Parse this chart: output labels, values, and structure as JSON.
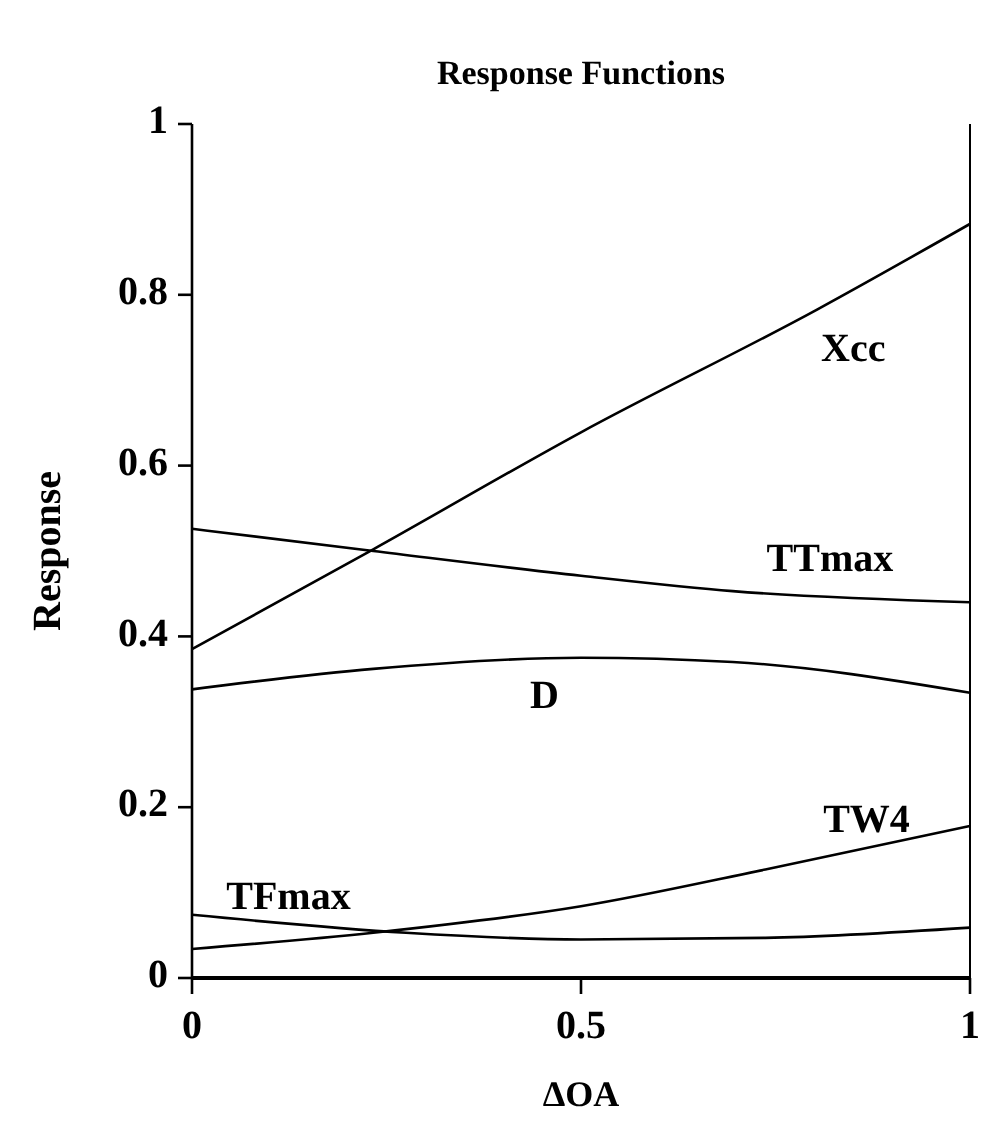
{
  "chart_data": {
    "type": "line",
    "title": "Response Functions",
    "xlabel": "ΔOA",
    "ylabel": "Response",
    "xlim": [
      0,
      1
    ],
    "ylim": [
      0,
      1
    ],
    "xticks": [
      0,
      0.5,
      1
    ],
    "yticks": [
      0,
      0.2,
      0.4,
      0.6,
      0.8,
      1
    ],
    "grid": false,
    "marker": "none",
    "line_style": "solid",
    "series": [
      {
        "name": "Xcc",
        "color": "#000000",
        "x": [
          0,
          0.233,
          0.5,
          0.804,
          1
        ],
        "values": [
          0.385,
          0.502,
          0.639,
          0.783,
          0.883
        ]
      },
      {
        "name": "TTmax",
        "color": "#000000",
        "x": [
          0,
          0.233,
          0.5,
          0.695,
          1
        ],
        "values": [
          0.526,
          0.5,
          0.471,
          0.453,
          0.44
        ]
      },
      {
        "name": "D",
        "color": "#000000",
        "x": [
          0,
          0.233,
          0.5,
          0.695,
          1
        ],
        "values": [
          0.338,
          0.362,
          0.375,
          0.37,
          0.334
        ]
      },
      {
        "name": "TW4",
        "color": "#000000",
        "x": [
          0,
          0.233,
          0.5,
          0.737,
          1
        ],
        "values": [
          0.034,
          0.053,
          0.084,
          0.127,
          0.178
        ]
      },
      {
        "name": "TFmax",
        "color": "#000000",
        "x": [
          0,
          0.275,
          0.5,
          0.737,
          1
        ],
        "values": [
          0.074,
          0.053,
          0.045,
          0.047,
          0.059
        ]
      }
    ]
  }
}
